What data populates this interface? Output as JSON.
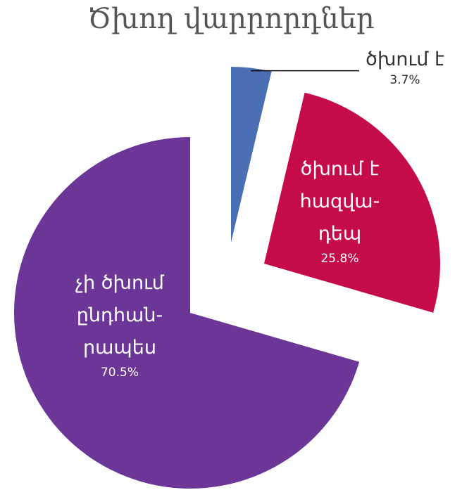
{
  "chart_data": {
    "type": "pie",
    "title": "Ծխող վարրորդներ",
    "categories": [
      "ծխում է",
      "ծխում է հազվա-դեպ",
      "չի ծխում ընդհան-րապես"
    ],
    "values": [
      3.7,
      25.8,
      70.5
    ],
    "value_labels": [
      "3.7%",
      "25.8%",
      "70.5%"
    ],
    "colors": [
      "#4a6fb5",
      "#c50b4a",
      "#6c3598"
    ]
  }
}
